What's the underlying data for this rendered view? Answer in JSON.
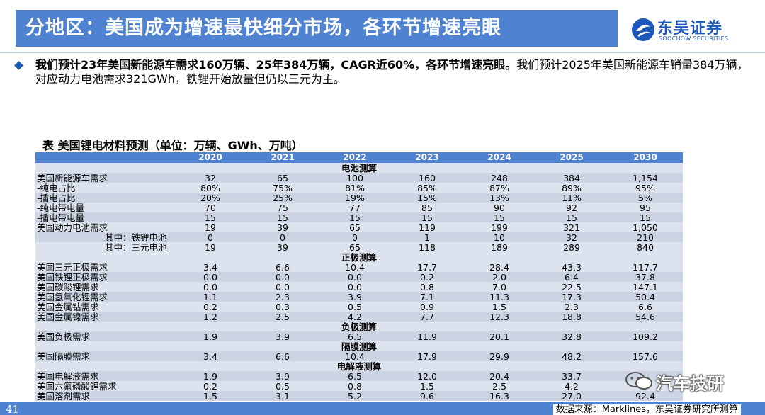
{
  "header": {
    "title": "分地区：美国成为增速最快细分市场，各环节增速亮眼",
    "logo_cn": "东吴证券",
    "logo_en": "SOOCHOW SECURITIES"
  },
  "summary": {
    "bold": "我们预计23年美国新能源车需求160万辆、25年384万辆，CAGR近60%，各环节增速亮眼。",
    "normal": "我们预计2025年美国新能源车销量384万辆，对应动力电池需求321GWh，铁锂开始放量但仍以三元为主。"
  },
  "table": {
    "title": "表  美国锂电材料预测（单位：万辆、GWh、万吨）",
    "years": [
      "2020",
      "2021",
      "2022",
      "2023",
      "2024",
      "2025",
      "2030"
    ],
    "sections": [
      {
        "name": "电池测算",
        "rows": [
          {
            "label": "美国新能源车需求",
            "sub": false,
            "values": [
              "32",
              "65",
              "100",
              "160",
              "248",
              "384",
              "1,154"
            ]
          },
          {
            "label": "-纯电占比",
            "sub": false,
            "values": [
              "80%",
              "75%",
              "81%",
              "85%",
              "87%",
              "89%",
              "95%"
            ]
          },
          {
            "label": "-插电占比",
            "sub": false,
            "values": [
              "20%",
              "25%",
              "19%",
              "15%",
              "13%",
              "11%",
              "5%"
            ]
          },
          {
            "label": "-纯电带电量",
            "sub": false,
            "values": [
              "70",
              "75",
              "77",
              "85",
              "90",
              "92",
              "95"
            ]
          },
          {
            "label": "-插电带电量",
            "sub": false,
            "values": [
              "15",
              "15",
              "15",
              "15",
              "15",
              "15",
              "15"
            ]
          },
          {
            "label": "美国动力电池需求",
            "sub": false,
            "values": [
              "19",
              "39",
              "65",
              "119",
              "199",
              "321",
              "1,050"
            ]
          },
          {
            "label": "其中：铁锂电池",
            "sub": true,
            "values": [
              "0",
              "0",
              "0",
              "1",
              "10",
              "32",
              "210"
            ]
          },
          {
            "label": "其中：三元电池",
            "sub": true,
            "values": [
              "19",
              "39",
              "65",
              "118",
              "189",
              "289",
              "840"
            ]
          }
        ]
      },
      {
        "name": "正极测算",
        "rows": [
          {
            "label": "美国三元正极需求",
            "sub": false,
            "values": [
              "3.4",
              "6.6",
              "10.4",
              "17.7",
              "28.4",
              "43.3",
              "117.7"
            ]
          },
          {
            "label": "美国铁锂正极需求",
            "sub": false,
            "values": [
              "0.0",
              "0.0",
              "0.0",
              "0.2",
              "2.0",
              "6.4",
              "37.8"
            ]
          },
          {
            "label": "美国碳酸锂需求",
            "sub": false,
            "values": [
              "0.0",
              "0.0",
              "0.0",
              "0.8",
              "7.0",
              "22.5",
              "147.1"
            ]
          },
          {
            "label": "美国氢氧化锂需求",
            "sub": false,
            "values": [
              "1.1",
              "2.3",
              "3.9",
              "7.1",
              "11.3",
              "17.3",
              "50.4"
            ]
          },
          {
            "label": "美国金属钴需求",
            "sub": false,
            "values": [
              "0.2",
              "0.3",
              "0.5",
              "0.9",
              "1.5",
              "2.3",
              "6.6"
            ]
          },
          {
            "label": "美国金属镍需求",
            "sub": false,
            "values": [
              "1.2",
              "2.5",
              "4.2",
              "7.7",
              "12.3",
              "18.8",
              "54.6"
            ]
          }
        ]
      },
      {
        "name": "负极测算",
        "rows": [
          {
            "label": "美国负极需求",
            "sub": false,
            "values": [
              "1.9",
              "3.9",
              "6.5",
              "11.9",
              "20.1",
              "32.8",
              "109.2"
            ]
          }
        ]
      },
      {
        "name": "隔膜测算",
        "rows": [
          {
            "label": "美国隔膜需求",
            "sub": false,
            "values": [
              "3.4",
              "6.6",
              "10.4",
              "17.9",
              "29.9",
              "48.2",
              "157.6"
            ]
          }
        ]
      },
      {
        "name": "电解液测算",
        "rows": [
          {
            "label": "美国电解液需求",
            "sub": false,
            "values": [
              "1.9",
              "3.9",
              "6.5",
              "12.0",
              "20.4",
              "33.7",
              ""
            ]
          },
          {
            "label": "美国六氟磷酸锂需求",
            "sub": false,
            "values": [
              "0.2",
              "0.5",
              "0.8",
              "1.5",
              "2.5",
              "4.2",
              ""
            ]
          },
          {
            "label": "美国溶剂需求",
            "sub": false,
            "values": [
              "1.5",
              "3.1",
              "5.2",
              "9.6",
              "16.3",
              "27.0",
              "92.4"
            ]
          }
        ]
      }
    ]
  },
  "footer": {
    "page_number": "41",
    "source": "数据来源：Marklines，东吴证券研究所测算"
  },
  "watermark": {
    "text": "汽车技研"
  },
  "colors": {
    "accent_blue": "#4f82d0",
    "brand_blue": "#1d57b7",
    "row_light": "#dde3ee",
    "row_dark": "#ccd4e4"
  }
}
